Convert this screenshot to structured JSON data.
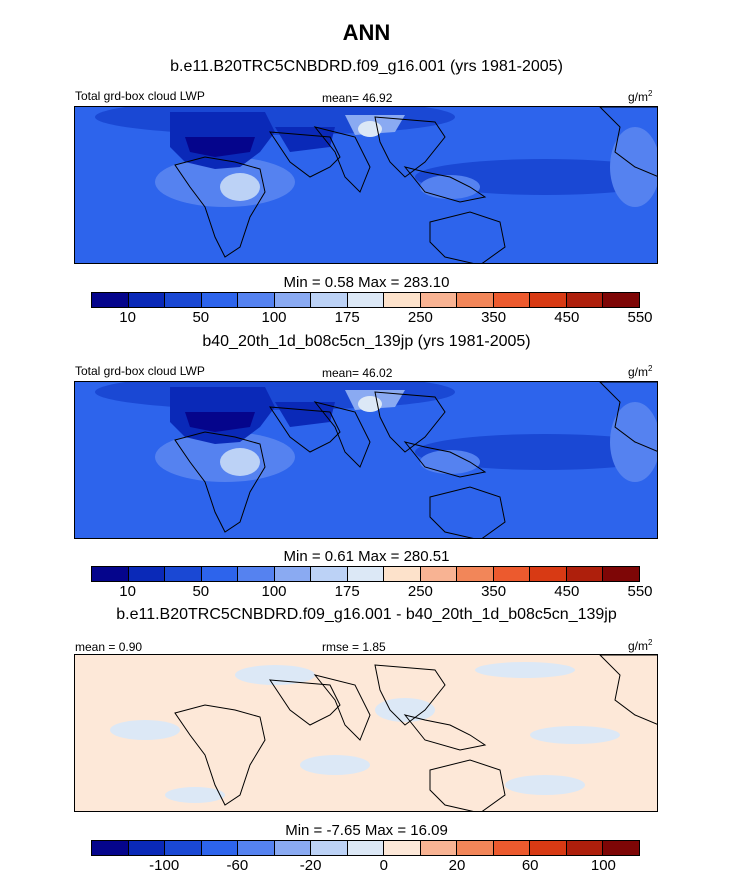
{
  "title": "ANN",
  "colorbar_colors": [
    "#05058c",
    "#0a29b8",
    "#1a48d4",
    "#2d64ec",
    "#5582f0",
    "#8aaaf2",
    "#bcd2f6",
    "#dce8f6",
    "#fde2cb",
    "#f8b393",
    "#f28659",
    "#ec5a2e",
    "#d83a14",
    "#ae1f0c",
    "#7e0606"
  ],
  "diff_colors": [
    "#05058c",
    "#0a29b8",
    "#1a48d4",
    "#2d64ec",
    "#5582f0",
    "#8aaaf2",
    "#bcd2f6",
    "#dce8f6",
    "#fde8d8",
    "#f8b393",
    "#f28659",
    "#ec5a2e",
    "#d83a14",
    "#ae1f0c",
    "#7e0606"
  ],
  "chart_data": [
    {
      "type": "heatmap",
      "title": "b.e11.B20TRC5CNBDRD.f09_g16.001 (yrs 1981-2005)",
      "left_label": "Total grd-box cloud LWP",
      "center_label": "mean=  46.92",
      "units": "g/m",
      "units_sup": "2",
      "stats": "Min =   0.58 Max = 283.10",
      "mean": 46.92,
      "min": 0.58,
      "max": 283.1,
      "colorbar_ticks": [
        "10",
        "50",
        "100",
        "175",
        "250",
        "350",
        "450",
        "550"
      ]
    },
    {
      "type": "heatmap",
      "title": "b40_20th_1d_b08c5cn_139jp (yrs 1981-2005)",
      "left_label": "Total grd-box cloud LWP",
      "center_label": "mean=  46.02",
      "units": "g/m",
      "units_sup": "2",
      "stats": "Min =   0.61 Max = 280.51",
      "mean": 46.02,
      "min": 0.61,
      "max": 280.51,
      "colorbar_ticks": [
        "10",
        "50",
        "100",
        "175",
        "250",
        "350",
        "450",
        "550"
      ]
    },
    {
      "type": "heatmap",
      "title": "b.e11.B20TRC5CNBDRD.f09_g16.001 - b40_20th_1d_b08c5cn_139jp",
      "left_label": "mean =   0.90",
      "center_label": "rmse =   1.85",
      "units": "g/m",
      "units_sup": "2",
      "stats": "Min =  -7.65 Max =  16.09",
      "mean": 0.9,
      "rmse": 1.85,
      "min": -7.65,
      "max": 16.09,
      "colorbar_ticks": [
        "-100",
        "-60",
        "-20",
        "0",
        "20",
        "60",
        "100"
      ]
    }
  ]
}
